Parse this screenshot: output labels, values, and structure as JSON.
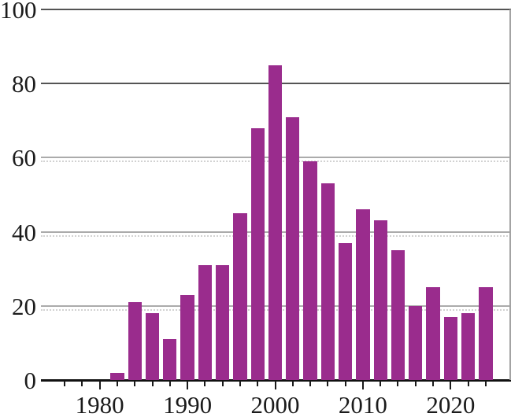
{
  "chart_data": {
    "type": "bar",
    "title": "",
    "xlabel": "",
    "ylabel": "",
    "x": [
      1982,
      1984,
      1986,
      1988,
      1990,
      1992,
      1994,
      1996,
      1998,
      2000,
      2002,
      2004,
      2006,
      2008,
      2010,
      2012,
      2014,
      2016,
      2018,
      2020,
      2022,
      2024
    ],
    "values": [
      2,
      21,
      18,
      11,
      23,
      31,
      31,
      45,
      68,
      85,
      71,
      59,
      53,
      37,
      46,
      43,
      35,
      20,
      25,
      17,
      18,
      25
    ],
    "bar_step_years": 2,
    "xlim": [
      1973.3,
      2026.7
    ],
    "ylim": [
      0,
      100
    ],
    "yticks": [
      {
        "value": 0,
        "label": "0",
        "style": "axis"
      },
      {
        "value": 20,
        "label": "20",
        "style": "light"
      },
      {
        "value": 40,
        "label": "40",
        "style": "light"
      },
      {
        "value": 60,
        "label": "60",
        "style": "light"
      },
      {
        "value": 80,
        "label": "80",
        "style": "dark"
      },
      {
        "value": 100,
        "label": "100",
        "style": "dark"
      }
    ],
    "xticks_minor": [
      1976,
      1978,
      1982,
      1984,
      1986,
      1988,
      1992,
      1994,
      1996,
      1998,
      2002,
      2004,
      2006,
      2008,
      2012,
      2014,
      2016,
      2018,
      2022,
      2024
    ],
    "xticks_major": [
      {
        "value": 1980,
        "label": "1980"
      },
      {
        "value": 1990,
        "label": "1990"
      },
      {
        "value": 2000,
        "label": "2000"
      },
      {
        "value": 2010,
        "label": "2010"
      },
      {
        "value": 2020,
        "label": "2020"
      }
    ],
    "grid": true,
    "legend": "none",
    "colors": {
      "bar": "#9a2c8d",
      "gridline_dark": "#545454",
      "gridline_light": "#ababab",
      "gridline_dotted": "#d2d2d2",
      "axis_line": "#111111",
      "right_border": "#a3a3a3",
      "text": "#1b1b1b"
    }
  }
}
